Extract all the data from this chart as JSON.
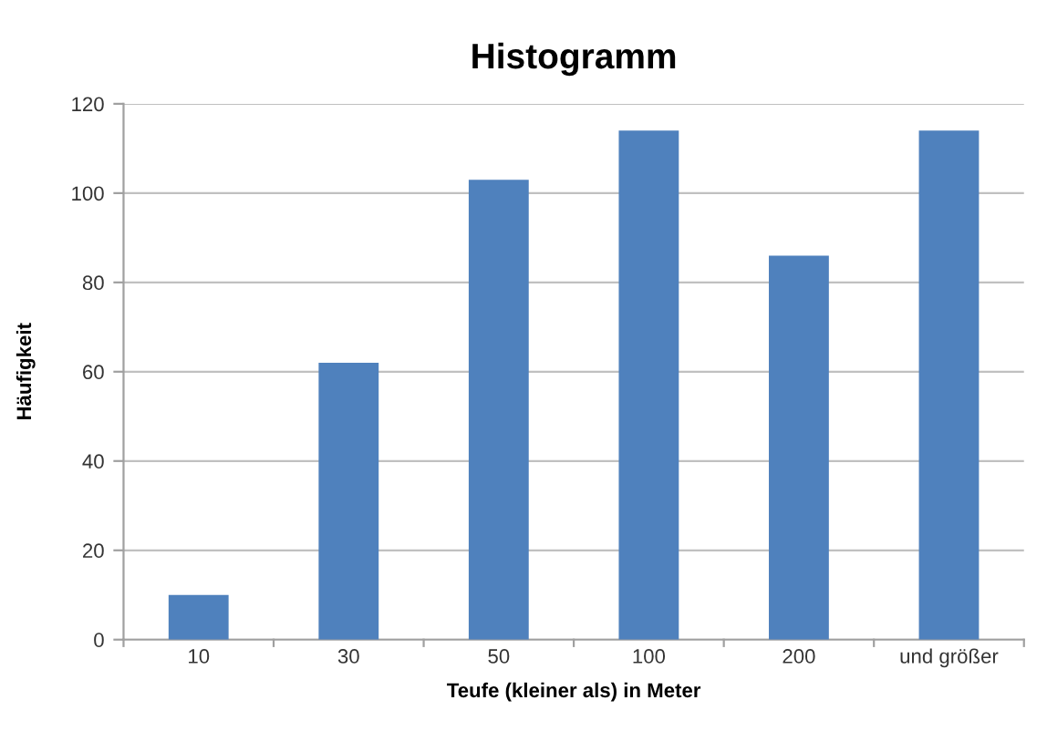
{
  "chart_data": {
    "type": "bar",
    "title": "Histogramm",
    "xlabel": "Teufe (kleiner als) in Meter",
    "ylabel": "Häufigkeit",
    "categories": [
      "10",
      "30",
      "50",
      "100",
      "200",
      "und größer"
    ],
    "values": [
      10,
      62,
      103,
      114,
      86,
      114
    ],
    "color": "#4f81bd",
    "ylim": [
      0,
      120
    ],
    "yticks": [
      0,
      20,
      40,
      60,
      80,
      100,
      120
    ],
    "grid": "y",
    "legend": false
  }
}
